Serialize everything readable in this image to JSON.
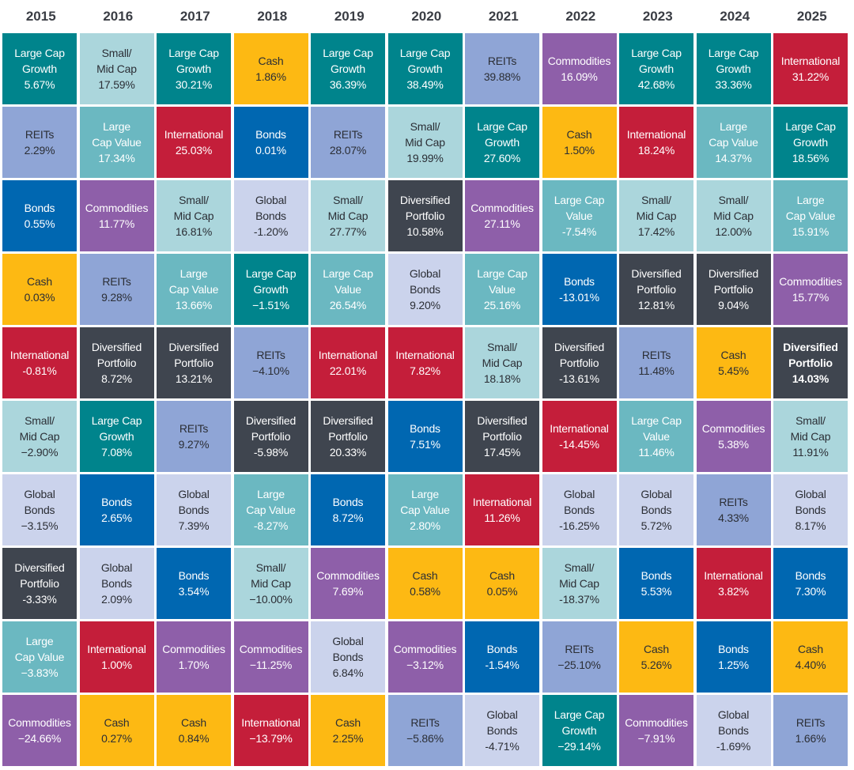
{
  "colors": {
    "Large Cap Growth": "#00848c",
    "Large Cap Value": "#6bb8c1",
    "Small/Mid Cap": "#abd6dc",
    "International": "#c41e3a",
    "REITs": "#8fa5d6",
    "Bonds": "#0067b1",
    "Global Bonds": "#cbd3ec",
    "Cash": "#fdb913",
    "Commodities": "#8e5fa9",
    "Diversified Portfolio": "#3f454f"
  },
  "text_dark": [
    "Small/Mid Cap",
    "Global Bonds",
    "Cash",
    "REITs"
  ],
  "chart_data": {
    "type": "table",
    "title": "",
    "years": [
      "2015",
      "2016",
      "2017",
      "2018",
      "2019",
      "2020",
      "2021",
      "2022",
      "2023",
      "2024",
      "2025"
    ],
    "columns": [
      {
        "year": "2015",
        "cells": [
          {
            "asset": "Large Cap Growth",
            "lines": [
              "Large Cap",
              "Growth"
            ],
            "value": "5.67%"
          },
          {
            "asset": "REITs",
            "lines": [
              "REITs"
            ],
            "value": "2.29%"
          },
          {
            "asset": "Bonds",
            "lines": [
              "Bonds"
            ],
            "value": "0.55%"
          },
          {
            "asset": "Cash",
            "lines": [
              "Cash"
            ],
            "value": "0.03%"
          },
          {
            "asset": "International",
            "lines": [
              "International"
            ],
            "value": "-0.81%"
          },
          {
            "asset": "Small/Mid Cap",
            "lines": [
              "Small/",
              "Mid Cap"
            ],
            "value": "−2.90%"
          },
          {
            "asset": "Global Bonds",
            "lines": [
              "Global",
              "Bonds"
            ],
            "value": "−3.15%"
          },
          {
            "asset": "Diversified Portfolio",
            "lines": [
              "Diversified",
              "Portfolio"
            ],
            "value": "-3.33%"
          },
          {
            "asset": "Large Cap Value",
            "lines": [
              "Large",
              "Cap Value"
            ],
            "value": "−3.83%"
          },
          {
            "asset": "Commodities",
            "lines": [
              "Commodities"
            ],
            "value": "−24.66%"
          }
        ]
      },
      {
        "year": "2016",
        "cells": [
          {
            "asset": "Small/Mid Cap",
            "lines": [
              "Small/",
              "Mid Cap"
            ],
            "value": "17.59%"
          },
          {
            "asset": "Large Cap Value",
            "lines": [
              "Large",
              "Cap Value"
            ],
            "value": "17.34%"
          },
          {
            "asset": "Commodities",
            "lines": [
              "Commodities"
            ],
            "value": "11.77%"
          },
          {
            "asset": "REITs",
            "lines": [
              "REITs"
            ],
            "value": "9.28%"
          },
          {
            "asset": "Diversified Portfolio",
            "lines": [
              "Diversified",
              "Portfolio"
            ],
            "value": "8.72%"
          },
          {
            "asset": "Large Cap Growth",
            "lines": [
              "Large Cap",
              "Growth"
            ],
            "value": "7.08%"
          },
          {
            "asset": "Bonds",
            "lines": [
              "Bonds"
            ],
            "value": "2.65%"
          },
          {
            "asset": "Global Bonds",
            "lines": [
              "Global",
              "Bonds"
            ],
            "value": "2.09%"
          },
          {
            "asset": "International",
            "lines": [
              "International"
            ],
            "value": "1.00%"
          },
          {
            "asset": "Cash",
            "lines": [
              "Cash"
            ],
            "value": "0.27%"
          }
        ]
      },
      {
        "year": "2017",
        "cells": [
          {
            "asset": "Large Cap Growth",
            "lines": [
              "Large Cap",
              "Growth"
            ],
            "value": "30.21%"
          },
          {
            "asset": "International",
            "lines": [
              "International"
            ],
            "value": "25.03%"
          },
          {
            "asset": "Small/Mid Cap",
            "lines": [
              "Small/",
              "Mid Cap"
            ],
            "value": "16.81%"
          },
          {
            "asset": "Large Cap Value",
            "lines": [
              "Large",
              "Cap Value"
            ],
            "value": "13.66%"
          },
          {
            "asset": "Diversified Portfolio",
            "lines": [
              "Diversified",
              "Portfolio"
            ],
            "value": "13.21%"
          },
          {
            "asset": "REITs",
            "lines": [
              "REITs"
            ],
            "value": "9.27%"
          },
          {
            "asset": "Global Bonds",
            "lines": [
              "Global",
              "Bonds"
            ],
            "value": "7.39%"
          },
          {
            "asset": "Bonds",
            "lines": [
              "Bonds"
            ],
            "value": "3.54%"
          },
          {
            "asset": "Commodities",
            "lines": [
              "Commodities"
            ],
            "value": "1.70%"
          },
          {
            "asset": "Cash",
            "lines": [
              "Cash"
            ],
            "value": "0.84%"
          }
        ]
      },
      {
        "year": "2018",
        "cells": [
          {
            "asset": "Cash",
            "lines": [
              "Cash"
            ],
            "value": "1.86%"
          },
          {
            "asset": "Bonds",
            "lines": [
              "Bonds"
            ],
            "value": "0.01%"
          },
          {
            "asset": "Global Bonds",
            "lines": [
              "Global",
              "Bonds"
            ],
            "value": "-1.20%"
          },
          {
            "asset": "Large Cap Growth",
            "lines": [
              "Large Cap",
              "Growth"
            ],
            "value": "−1.51%"
          },
          {
            "asset": "REITs",
            "lines": [
              "REITs"
            ],
            "value": "−4.10%"
          },
          {
            "asset": "Diversified Portfolio",
            "lines": [
              "Diversified",
              "Portfolio"
            ],
            "value": "-5.98%"
          },
          {
            "asset": "Large Cap Value",
            "lines": [
              "Large",
              "Cap Value"
            ],
            "value": "-8.27%"
          },
          {
            "asset": "Small/Mid Cap",
            "lines": [
              "Small/",
              "Mid Cap"
            ],
            "value": "−10.00%"
          },
          {
            "asset": "Commodities",
            "lines": [
              "Commodities"
            ],
            "value": "−11.25%"
          },
          {
            "asset": "International",
            "lines": [
              "International"
            ],
            "value": "−13.79%"
          }
        ]
      },
      {
        "year": "2019",
        "cells": [
          {
            "asset": "Large Cap Growth",
            "lines": [
              "Large Cap",
              "Growth"
            ],
            "value": "36.39%"
          },
          {
            "asset": "REITs",
            "lines": [
              "REITs"
            ],
            "value": "28.07%"
          },
          {
            "asset": "Small/Mid Cap",
            "lines": [
              "Small/",
              "Mid Cap"
            ],
            "value": "27.77%"
          },
          {
            "asset": "Large Cap Value",
            "lines": [
              "Large Cap",
              "Value"
            ],
            "value": "26.54%"
          },
          {
            "asset": "International",
            "lines": [
              "International"
            ],
            "value": "22.01%"
          },
          {
            "asset": "Diversified Portfolio",
            "lines": [
              "Diversified",
              "Portfolio"
            ],
            "value": "20.33%"
          },
          {
            "asset": "Bonds",
            "lines": [
              "Bonds"
            ],
            "value": "8.72%"
          },
          {
            "asset": "Commodities",
            "lines": [
              "Commodities"
            ],
            "value": "7.69%"
          },
          {
            "asset": "Global Bonds",
            "lines": [
              "Global",
              "Bonds"
            ],
            "value": "6.84%"
          },
          {
            "asset": "Cash",
            "lines": [
              "Cash"
            ],
            "value": "2.25%"
          }
        ]
      },
      {
        "year": "2020",
        "cells": [
          {
            "asset": "Large Cap Growth",
            "lines": [
              "Large Cap",
              "Growth"
            ],
            "value": "38.49%"
          },
          {
            "asset": "Small/Mid Cap",
            "lines": [
              "Small/",
              "Mid Cap"
            ],
            "value": "19.99%"
          },
          {
            "asset": "Diversified Portfolio",
            "lines": [
              "Diversified",
              "Portfolio"
            ],
            "value": "10.58%"
          },
          {
            "asset": "Global Bonds",
            "lines": [
              "Global",
              "Bonds"
            ],
            "value": "9.20%"
          },
          {
            "asset": "International",
            "lines": [
              "International"
            ],
            "value": "7.82%"
          },
          {
            "asset": "Bonds",
            "lines": [
              "Bonds"
            ],
            "value": "7.51%"
          },
          {
            "asset": "Large Cap Value",
            "lines": [
              "Large",
              "Cap Value"
            ],
            "value": "2.80%"
          },
          {
            "asset": "Cash",
            "lines": [
              "Cash"
            ],
            "value": "0.58%"
          },
          {
            "asset": "Commodities",
            "lines": [
              "Commodities"
            ],
            "value": "−3.12%"
          },
          {
            "asset": "REITs",
            "lines": [
              "REITs"
            ],
            "value": "−5.86%"
          }
        ]
      },
      {
        "year": "2021",
        "cells": [
          {
            "asset": "REITs",
            "lines": [
              "REITs"
            ],
            "value": "39.88%"
          },
          {
            "asset": "Large Cap Growth",
            "lines": [
              "Large Cap",
              "Growth"
            ],
            "value": "27.60%"
          },
          {
            "asset": "Commodities",
            "lines": [
              "Commodities"
            ],
            "value": "27.11%"
          },
          {
            "asset": "Large Cap Value",
            "lines": [
              "Large Cap",
              "Value"
            ],
            "value": "25.16%"
          },
          {
            "asset": "Small/Mid Cap",
            "lines": [
              "Small/",
              "Mid Cap"
            ],
            "value": "18.18%"
          },
          {
            "asset": "Diversified Portfolio",
            "lines": [
              "Diversified",
              "Portfolio"
            ],
            "value": "17.45%"
          },
          {
            "asset": "International",
            "lines": [
              "International"
            ],
            "value": "11.26%"
          },
          {
            "asset": "Cash",
            "lines": [
              "Cash"
            ],
            "value": "0.05%"
          },
          {
            "asset": "Bonds",
            "lines": [
              "Bonds"
            ],
            "value": "-1.54%"
          },
          {
            "asset": "Global Bonds",
            "lines": [
              "Global",
              "Bonds"
            ],
            "value": "-4.71%"
          }
        ]
      },
      {
        "year": "2022",
        "cells": [
          {
            "asset": "Commodities",
            "lines": [
              "Commodities"
            ],
            "value": "16.09%"
          },
          {
            "asset": "Cash",
            "lines": [
              "Cash"
            ],
            "value": "1.50%"
          },
          {
            "asset": "Large Cap Value",
            "lines": [
              "Large Cap",
              "Value"
            ],
            "value": "-7.54%"
          },
          {
            "asset": "Bonds",
            "lines": [
              "Bonds"
            ],
            "value": "-13.01%"
          },
          {
            "asset": "Diversified Portfolio",
            "lines": [
              "Diversified",
              "Portfolio"
            ],
            "value": "-13.61%"
          },
          {
            "asset": "International",
            "lines": [
              "International"
            ],
            "value": "-14.45%"
          },
          {
            "asset": "Global Bonds",
            "lines": [
              "Global",
              "Bonds"
            ],
            "value": "-16.25%"
          },
          {
            "asset": "Small/Mid Cap",
            "lines": [
              "Small/",
              "Mid Cap"
            ],
            "value": "-18.37%"
          },
          {
            "asset": "REITs",
            "lines": [
              "REITs"
            ],
            "value": "−25.10%"
          },
          {
            "asset": "Large Cap Growth",
            "lines": [
              "Large Cap",
              "Growth"
            ],
            "value": "−29.14%"
          }
        ]
      },
      {
        "year": "2023",
        "cells": [
          {
            "asset": "Large Cap Growth",
            "lines": [
              "Large Cap",
              "Growth"
            ],
            "value": "42.68%"
          },
          {
            "asset": "International",
            "lines": [
              "International"
            ],
            "value": "18.24%"
          },
          {
            "asset": "Small/Mid Cap",
            "lines": [
              "Small/",
              "Mid Cap"
            ],
            "value": "17.42%"
          },
          {
            "asset": "Diversified Portfolio",
            "lines": [
              "Diversified",
              "Portfolio"
            ],
            "value": "12.81%"
          },
          {
            "asset": "REITs",
            "lines": [
              "REITs"
            ],
            "value": "11.48%"
          },
          {
            "asset": "Large Cap Value",
            "lines": [
              "Large Cap",
              "Value"
            ],
            "value": "11.46%"
          },
          {
            "asset": "Global Bonds",
            "lines": [
              "Global",
              "Bonds"
            ],
            "value": "5.72%"
          },
          {
            "asset": "Bonds",
            "lines": [
              "Bonds"
            ],
            "value": "5.53%"
          },
          {
            "asset": "Cash",
            "lines": [
              "Cash"
            ],
            "value": "5.26%"
          },
          {
            "asset": "Commodities",
            "lines": [
              "Commodities"
            ],
            "value": "−7.91%"
          }
        ]
      },
      {
        "year": "2024",
        "cells": [
          {
            "asset": "Large Cap Growth",
            "lines": [
              "Large Cap",
              "Growth"
            ],
            "value": "33.36%"
          },
          {
            "asset": "Large Cap Value",
            "lines": [
              "Large",
              "Cap Value"
            ],
            "value": "14.37%"
          },
          {
            "asset": "Small/Mid Cap",
            "lines": [
              "Small/",
              "Mid Cap"
            ],
            "value": "12.00%"
          },
          {
            "asset": "Diversified Portfolio",
            "lines": [
              "Diversified",
              "Portfolio"
            ],
            "value": "9.04%"
          },
          {
            "asset": "Cash",
            "lines": [
              "Cash"
            ],
            "value": "5.45%"
          },
          {
            "asset": "Commodities",
            "lines": [
              "Commodities"
            ],
            "value": "5.38%"
          },
          {
            "asset": "REITs",
            "lines": [
              "REITs"
            ],
            "value": "4.33%"
          },
          {
            "asset": "International",
            "lines": [
              "International"
            ],
            "value": "3.82%"
          },
          {
            "asset": "Bonds",
            "lines": [
              "Bonds"
            ],
            "value": "1.25%"
          },
          {
            "asset": "Global Bonds",
            "lines": [
              "Global",
              "Bonds"
            ],
            "value": "-1.69%"
          }
        ]
      },
      {
        "year": "2025",
        "cells": [
          {
            "asset": "International",
            "lines": [
              "International"
            ],
            "value": "31.22%"
          },
          {
            "asset": "Large Cap Growth",
            "lines": [
              "Large Cap",
              "Growth"
            ],
            "value": "18.56%"
          },
          {
            "asset": "Large Cap Value",
            "lines": [
              "Large",
              "Cap Value"
            ],
            "value": "15.91%"
          },
          {
            "asset": "Commodities",
            "lines": [
              "Commodities"
            ],
            "value": "15.77%"
          },
          {
            "asset": "Diversified Portfolio",
            "lines": [
              "Diversified",
              "Portfolio"
            ],
            "value": "14.03%",
            "bold": true
          },
          {
            "asset": "Small/Mid Cap",
            "lines": [
              "Small/",
              "Mid Cap"
            ],
            "value": "11.91%"
          },
          {
            "asset": "Global Bonds",
            "lines": [
              "Global",
              "Bonds"
            ],
            "value": "8.17%"
          },
          {
            "asset": "Bonds",
            "lines": [
              "Bonds"
            ],
            "value": "7.30%"
          },
          {
            "asset": "Cash",
            "lines": [
              "Cash"
            ],
            "value": "4.40%"
          },
          {
            "asset": "REITs",
            "lines": [
              "REITs"
            ],
            "value": "1.66%"
          }
        ]
      }
    ]
  }
}
